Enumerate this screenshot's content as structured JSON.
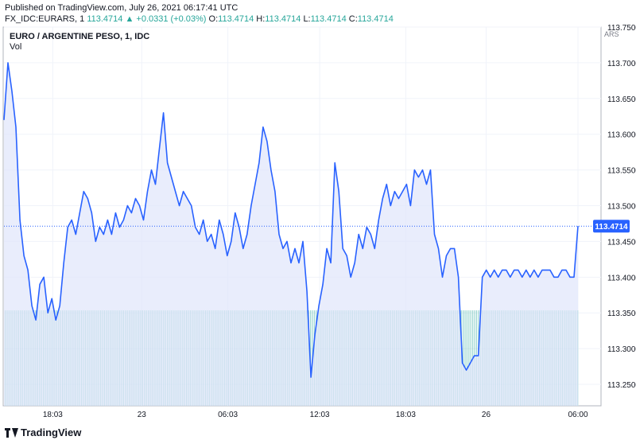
{
  "header": {
    "published": "Published on TradingView.com, July 26, 2021 06:17:41 UTC",
    "symbol_line": "FX_IDC:EURARS, 1",
    "last": "113.4714",
    "change": "▲ +0.0331 (+0.03%)",
    "o_label": "O:",
    "o": "113.4714",
    "h_label": "H:",
    "h": "113.4714",
    "l_label": "L:",
    "l": "113.4714",
    "c_label": "C:",
    "c": "113.4714"
  },
  "legend": {
    "title": "EURO / ARGENTINE PESO, 1, IDC",
    "vol": "Vol"
  },
  "footer": {
    "brand": "TradingView"
  },
  "colors": {
    "line": "#2962ff",
    "fill": "#dfe6fb",
    "volume": "#26a69a",
    "grid": "#f0f3fa",
    "price_label_bg": "#2962ff"
  },
  "chart_data": {
    "type": "area",
    "currency": "ARS",
    "last_price_label": "113.4714",
    "ylim": [
      113.22,
      113.75
    ],
    "y_ticks": [
      {
        "value": 113.25,
        "label": "113.2500"
      },
      {
        "value": 113.3,
        "label": "113.3000"
      },
      {
        "value": 113.35,
        "label": "113.3500"
      },
      {
        "value": 113.4,
        "label": "113.4000"
      },
      {
        "value": 113.45,
        "label": "113.4500"
      },
      {
        "value": 113.5,
        "label": "113.5000"
      },
      {
        "value": 113.55,
        "label": "113.5500"
      },
      {
        "value": 113.6,
        "label": "113.6000"
      },
      {
        "value": 113.65,
        "label": "113.6500"
      },
      {
        "value": 113.7,
        "label": "113.7000"
      },
      {
        "value": 113.75,
        "label": "113.7500"
      }
    ],
    "x_ticks": [
      {
        "t": 0.085,
        "label": "18:03"
      },
      {
        "t": 0.24,
        "label": "23"
      },
      {
        "t": 0.39,
        "label": "06:03"
      },
      {
        "t": 0.55,
        "label": "12:03"
      },
      {
        "t": 0.7,
        "label": "18:03"
      },
      {
        "t": 0.84,
        "label": "26"
      },
      {
        "t": 1.0,
        "label": "06:00"
      }
    ],
    "series": [
      {
        "values": [
          113.62,
          113.7,
          113.66,
          113.61,
          113.48,
          113.43,
          113.41,
          113.36,
          113.34,
          113.39,
          113.4,
          113.35,
          113.37,
          113.34,
          113.36,
          113.42,
          113.47,
          113.48,
          113.46,
          113.49,
          113.52,
          113.51,
          113.49,
          113.45,
          113.47,
          113.46,
          113.48,
          113.46,
          113.49,
          113.47,
          113.48,
          113.5,
          113.49,
          113.51,
          113.5,
          113.48,
          113.52,
          113.55,
          113.53,
          113.58,
          113.63,
          113.56,
          113.54,
          113.52,
          113.5,
          113.52,
          113.51,
          113.5,
          113.47,
          113.46,
          113.48,
          113.45,
          113.46,
          113.44,
          113.48,
          113.46,
          113.43,
          113.45,
          113.49,
          113.47,
          113.44,
          113.46,
          113.5,
          113.53,
          113.56,
          113.61,
          113.59,
          113.55,
          113.52,
          113.46,
          113.44,
          113.45,
          113.42,
          113.44,
          113.42,
          113.45,
          113.38,
          113.26,
          113.32,
          113.36,
          113.39,
          113.44,
          113.42,
          113.56,
          113.52,
          113.44,
          113.43,
          113.4,
          113.42,
          113.46,
          113.44,
          113.47,
          113.46,
          113.44,
          113.48,
          113.51,
          113.53,
          113.5,
          113.52,
          113.51,
          113.52,
          113.53,
          113.5,
          113.55,
          113.54,
          113.55,
          113.53,
          113.55,
          113.46,
          113.44,
          113.4,
          113.43,
          113.44,
          113.44,
          113.4,
          113.28,
          113.27,
          113.28,
          113.29,
          113.29,
          113.4,
          113.41,
          113.4,
          113.41,
          113.4,
          113.41,
          113.41,
          113.4,
          113.41,
          113.41,
          113.4,
          113.41,
          113.4,
          113.41,
          113.4,
          113.41,
          113.41,
          113.41,
          113.4,
          113.4,
          113.41,
          113.41,
          113.4,
          113.4,
          113.4714
        ]
      }
    ]
  }
}
